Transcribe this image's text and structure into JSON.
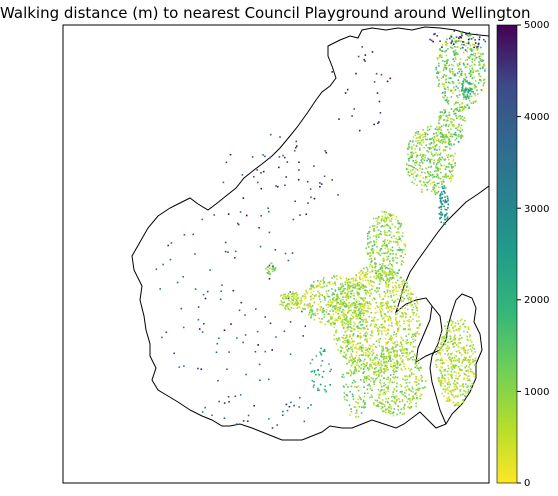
{
  "title": "Walking distance (m) to nearest Council Playground around Wellington",
  "colorbar": {
    "colormap": "viridis (reversed)",
    "range": [
      0,
      5000
    ],
    "ticks": [
      0,
      1000,
      2000,
      3000,
      4000,
      5000
    ],
    "tick_labels": [
      "0",
      "1000",
      "2000",
      "3000",
      "4000",
      "5000"
    ]
  },
  "map": {
    "region": "Wellington",
    "boundary_color": "#000000",
    "frame_color": "#000000"
  },
  "colors": {
    "low": "#fde725",
    "mid": "#21918c",
    "high": "#440154"
  }
}
